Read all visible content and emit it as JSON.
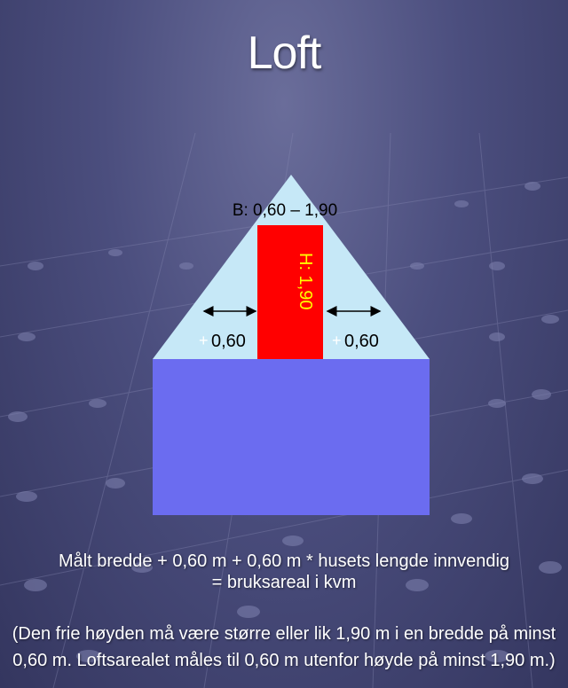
{
  "title": "Loft",
  "diagram": {
    "width_label": "B: 0,60 – 1,90",
    "height_label": "H: 1,90",
    "left_offset_label": "0,60",
    "right_offset_label": "0,60",
    "plus_sign": "+"
  },
  "formula": {
    "line1": "Målt bredde + 0,60 m + 0,60 m * husets lengde innvendig",
    "line2": "= bruksareal i kvm"
  },
  "note": {
    "line1": "(Den frie høyden må være større eller lik 1,90 m i en bredde på minst",
    "line2": "0,60 m. Loftsarealet måles til 0,60 m utenfor høyde på minst 1,90 m.)"
  },
  "colors": {
    "roof": "#c6e8f7",
    "house": "#6b6cf0",
    "height_zone": "#ff0000",
    "height_label": "#ffff00"
  }
}
